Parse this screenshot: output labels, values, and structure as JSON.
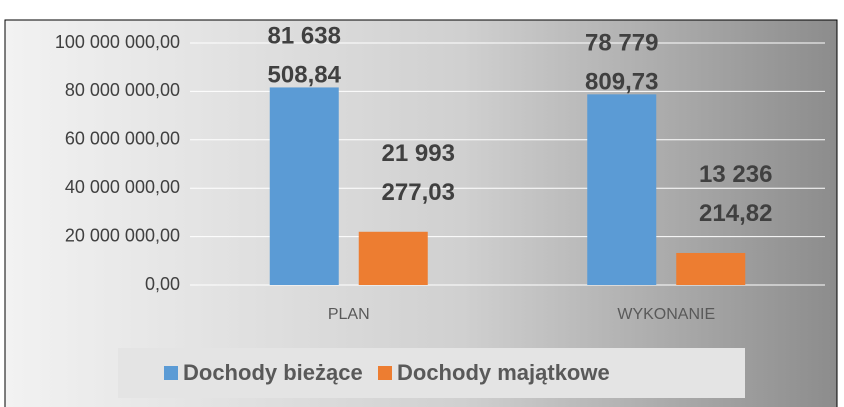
{
  "chart_data": {
    "type": "bar",
    "categories": [
      "PLAN",
      "WYKONANIE"
    ],
    "series": [
      {
        "name": "Dochody bieżące",
        "color": "#5b9bd5",
        "values": [
          81638508.84,
          78779809.73
        ],
        "value_labels": [
          "81 638 508,84",
          "78 779 809,73"
        ]
      },
      {
        "name": "Dochody majątkowe",
        "color": "#ed7d31",
        "values": [
          21993277.03,
          13236214.82
        ],
        "value_labels": [
          "21 993 277,03",
          "13 236 214,82"
        ]
      }
    ],
    "ylim": [
      0,
      100000000
    ],
    "yticks": [
      {
        "value": 0,
        "label": "0,00"
      },
      {
        "value": 20000000,
        "label": "20 000 000,00"
      },
      {
        "value": 40000000,
        "label": "40 000 000,00"
      },
      {
        "value": 60000000,
        "label": "60 000 000,00"
      },
      {
        "value": 80000000,
        "label": "80 000 000,00"
      },
      {
        "value": 100000000,
        "label": "100 000 000,00"
      }
    ],
    "grid": true
  }
}
